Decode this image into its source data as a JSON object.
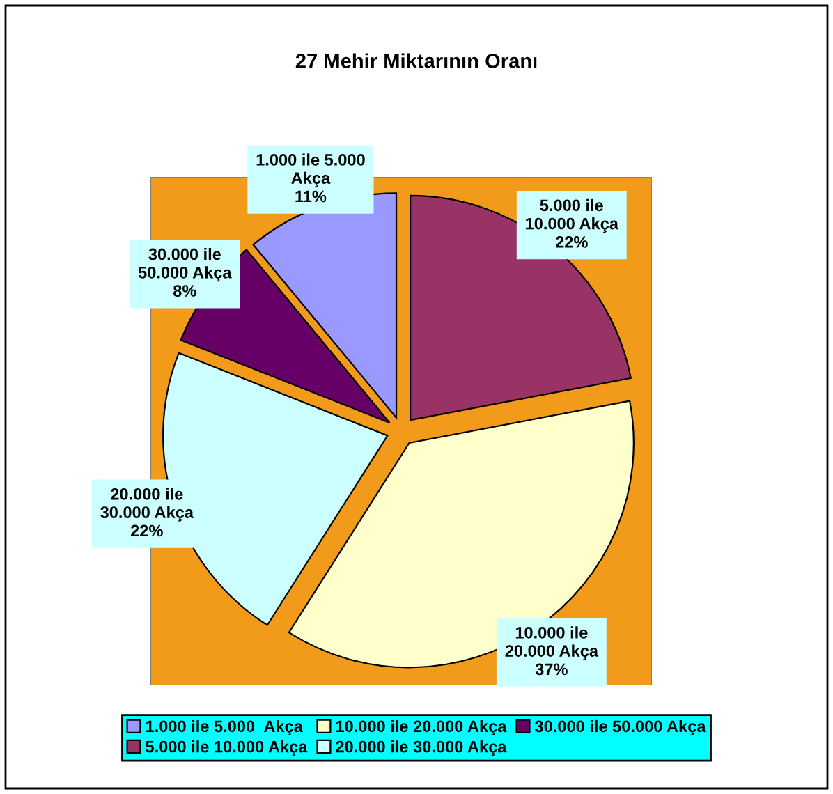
{
  "chart_data": {
    "type": "pie",
    "title": "27 Mehir Miktarının Oranı",
    "categories": [
      "1.000 ile 5.000  Akça",
      "5.000 ile 10.000 Akça",
      "10.000 ile 20.000 Akça",
      "20.000 ile 30.000 Akça",
      "30.000 ile 50.000 Akça"
    ],
    "values": [
      11,
      22,
      37,
      22,
      8
    ],
    "value_labels": [
      "11%",
      "22%",
      "37%",
      "22%",
      "8%"
    ],
    "colors": [
      "#9999ff",
      "#993366",
      "#ffffcc",
      "#ccffff",
      "#660066"
    ],
    "legend": "bottom"
  }
}
